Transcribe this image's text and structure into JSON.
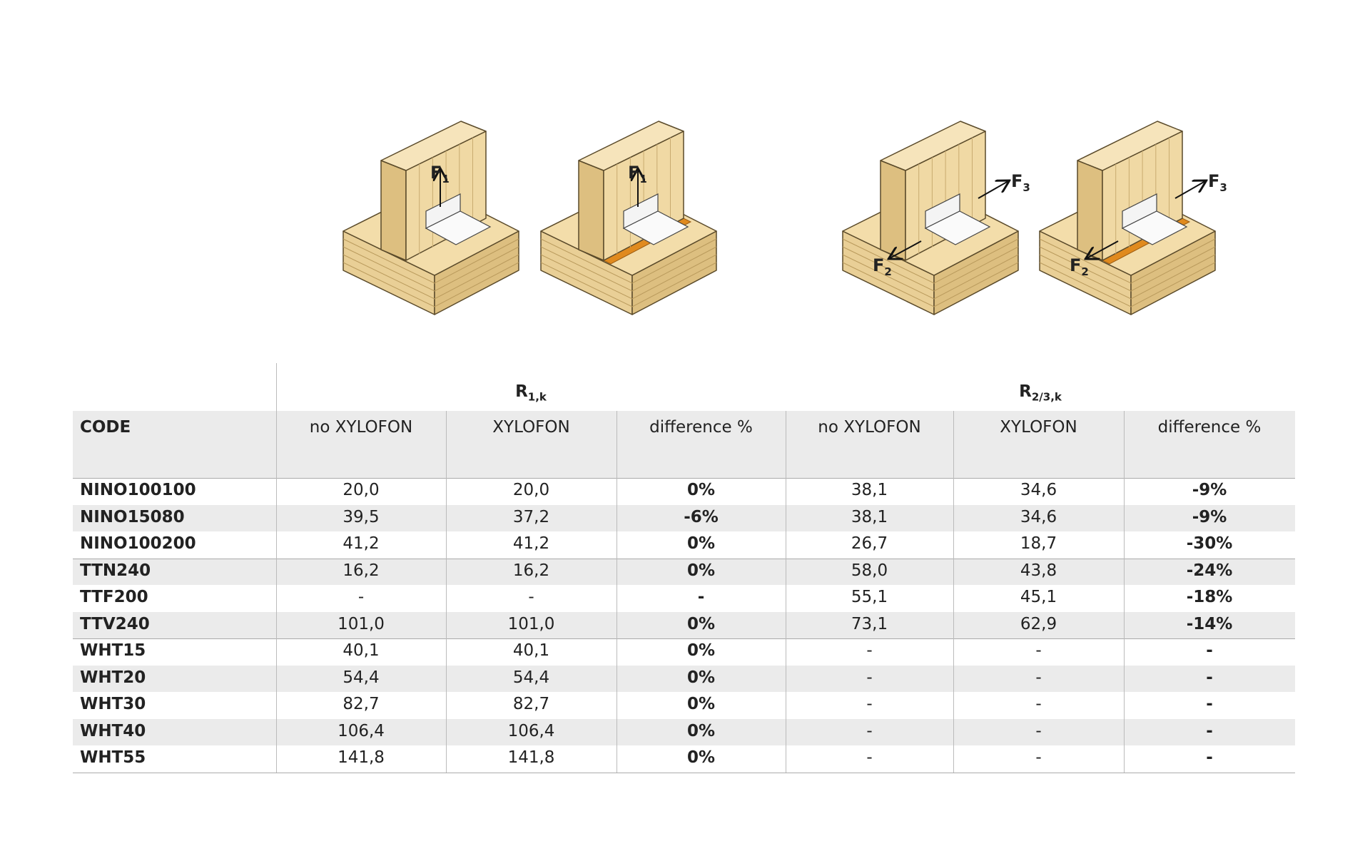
{
  "figures": [
    {
      "force_labels": [
        {
          "main": "F",
          "sub": "1"
        }
      ]
    },
    {
      "force_labels": [
        {
          "main": "F",
          "sub": "1"
        }
      ]
    },
    {
      "force_labels": [
        {
          "main": "F",
          "sub": "3"
        },
        {
          "main": "F",
          "sub": "2"
        }
      ]
    },
    {
      "force_labels": [
        {
          "main": "F",
          "sub": "3"
        },
        {
          "main": "F",
          "sub": "2"
        }
      ]
    }
  ],
  "table": {
    "groups": [
      {
        "main": "R",
        "sub": "1,k"
      },
      {
        "main": "R",
        "sub": "2/3,k"
      }
    ],
    "header": [
      "CODE",
      "no XYLOFON",
      "XYLOFON",
      "difference %",
      "no XYLOFON",
      "XYLOFON",
      "difference %"
    ],
    "rows": [
      [
        "NINO100100",
        "20,0",
        "20,0",
        "0%",
        "38,1",
        "34,6",
        "-9%"
      ],
      [
        "NINO15080",
        "39,5",
        "37,2",
        "-6%",
        "38,1",
        "34,6",
        "-9%"
      ],
      [
        "NINO100200",
        "41,2",
        "41,2",
        "0%",
        "26,7",
        "18,7",
        "-30%"
      ],
      [
        "TTN240",
        "16,2",
        "16,2",
        "0%",
        "58,0",
        "43,8",
        "-24%"
      ],
      [
        "TTF200",
        "-",
        "-",
        "-",
        "55,1",
        "45,1",
        "-18%"
      ],
      [
        "TTV240",
        "101,0",
        "101,0",
        "0%",
        "73,1",
        "62,9",
        "-14%"
      ],
      [
        "WHT15",
        "40,1",
        "40,1",
        "0%",
        "-",
        "-",
        "-"
      ],
      [
        "WHT20",
        "54,4",
        "54,4",
        "0%",
        "-",
        "-",
        "-"
      ],
      [
        "WHT30",
        "82,7",
        "82,7",
        "0%",
        "-",
        "-",
        "-"
      ],
      [
        "WHT40",
        "106,4",
        "106,4",
        "0%",
        "-",
        "-",
        "-"
      ],
      [
        "WHT55",
        "141,8",
        "141,8",
        "0%",
        "-",
        "-",
        "-"
      ]
    ]
  }
}
